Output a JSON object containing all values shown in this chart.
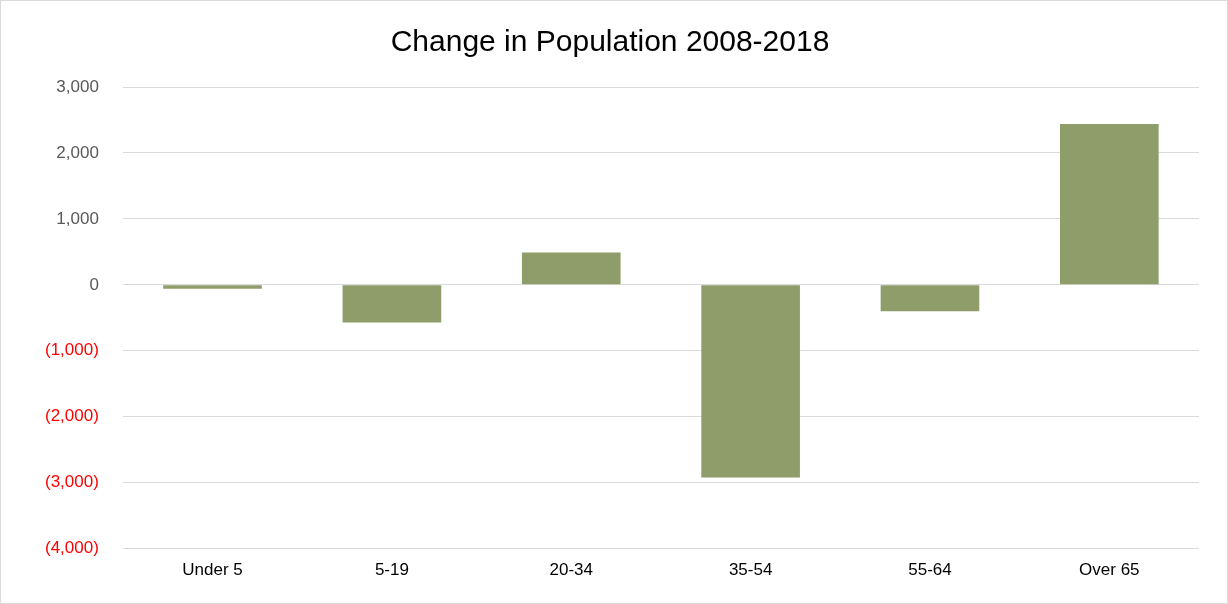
{
  "chart_data": {
    "type": "bar",
    "title": "Change in Population 2008-2018",
    "categories": [
      "Under 5",
      "5-19",
      "20-34",
      "35-54",
      "55-64",
      "Over 65"
    ],
    "values": [
      -60,
      -570,
      490,
      -2920,
      -400,
      2440
    ],
    "color": "#8f9d6a",
    "ylim": [
      -4000,
      3000
    ],
    "yticks": [
      {
        "value": -4000,
        "label": "(4,000)"
      },
      {
        "value": -3000,
        "label": "(3,000)"
      },
      {
        "value": -2000,
        "label": "(2,000)"
      },
      {
        "value": -1000,
        "label": "(1,000)"
      },
      {
        "value": 0,
        "label": "0"
      },
      {
        "value": 1000,
        "label": "1,000"
      },
      {
        "value": 2000,
        "label": "2,000"
      },
      {
        "value": 3000,
        "label": "3,000"
      }
    ],
    "grid": "y",
    "legend": false
  }
}
